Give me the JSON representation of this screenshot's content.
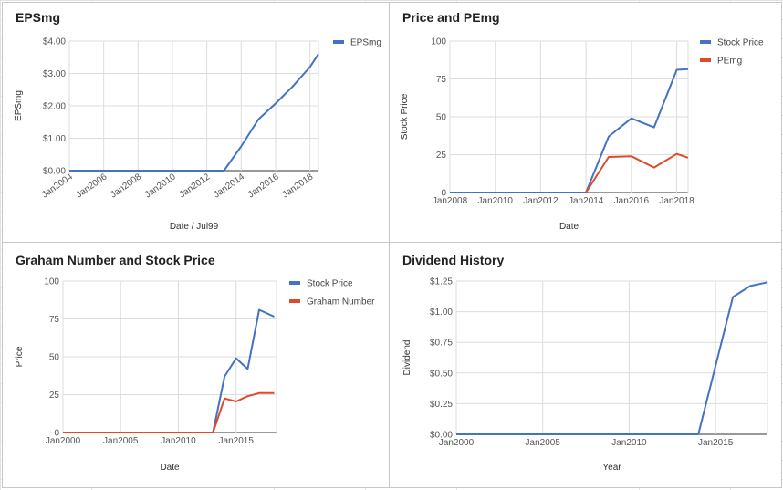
{
  "chart_data": [
    {
      "type": "line",
      "title": "EPSmg",
      "xlabel": "Date / Jul99",
      "ylabel": "EPSmg",
      "x_axis": "date",
      "xlim": [
        2004,
        2018.5
      ],
      "ylim": [
        0,
        4
      ],
      "x_ticks": [
        "Jan2004",
        "Jan2006",
        "Jan2008",
        "Jan2010",
        "Jan2012",
        "Jan2014",
        "Jan2016",
        "Jan2018"
      ],
      "y_ticks": [
        "$0.00",
        "$1.00",
        "$2.00",
        "$3.00",
        "$4.00"
      ],
      "x_tick_rotation": "rotated",
      "grid": true,
      "legend_position": "top-right",
      "colors": [
        "#4472c4"
      ],
      "series": [
        {
          "name": "EPSmg",
          "color": "#4472c4",
          "x": [
            2004,
            2006,
            2008,
            2010,
            2012,
            2013,
            2014,
            2015,
            2016,
            2017,
            2018,
            2018.5
          ],
          "y": [
            0,
            0,
            0,
            0,
            0,
            0,
            0.75,
            1.58,
            2.07,
            2.6,
            3.2,
            3.6
          ]
        }
      ]
    },
    {
      "type": "line",
      "title": "Price and PEmg",
      "xlabel": "Date",
      "ylabel": "Stock Price",
      "x_axis": "date",
      "xlim": [
        2008,
        2018.5
      ],
      "ylim": [
        0,
        100
      ],
      "x_ticks": [
        "Jan2008",
        "Jan2010",
        "Jan2012",
        "Jan2014",
        "Jan2016",
        "Jan2018"
      ],
      "y_ticks": [
        "0",
        "25",
        "50",
        "75",
        "100"
      ],
      "grid": true,
      "legend_position": "top-right",
      "colors": [
        "#4472c4",
        "#dd4b2b"
      ],
      "series": [
        {
          "name": "Stock Price",
          "color": "#4472c4",
          "x": [
            2008,
            2010,
            2012,
            2014,
            2015,
            2016,
            2017,
            2018,
            2018.5
          ],
          "y": [
            0,
            0,
            0,
            0,
            37,
            49,
            43,
            81,
            81.5
          ]
        },
        {
          "name": "PEmg",
          "color": "#dd4b2b",
          "x": [
            2014,
            2015,
            2016,
            2017,
            2018,
            2018.5
          ],
          "y": [
            0,
            23.5,
            24,
            16.5,
            25.5,
            23
          ]
        }
      ]
    },
    {
      "type": "line",
      "title": "Graham Number and Stock Price",
      "xlabel": "Date",
      "ylabel": "Price",
      "x_axis": "date",
      "xlim": [
        2000,
        2018.5
      ],
      "ylim": [
        0,
        100
      ],
      "x_ticks": [
        "Jan2000",
        "Jan2005",
        "Jan2010",
        "Jan2015"
      ],
      "y_ticks": [
        "0",
        "25",
        "50",
        "75",
        "100"
      ],
      "grid": true,
      "legend_position": "top-right",
      "colors": [
        "#4472c4",
        "#dd4b2b"
      ],
      "series": [
        {
          "name": "Stock Price",
          "color": "#4472c4",
          "x": [
            2000,
            2005,
            2010,
            2013,
            2014,
            2015,
            2016,
            2017,
            2018.3
          ],
          "y": [
            0,
            0,
            0,
            0,
            37,
            49,
            42,
            81,
            76.5
          ]
        },
        {
          "name": "Graham Number",
          "color": "#dd4b2b",
          "x": [
            2000,
            2005,
            2010,
            2013,
            2014,
            2015,
            2016,
            2017,
            2018.3
          ],
          "y": [
            0,
            0,
            0,
            0,
            22.5,
            20.5,
            24,
            26,
            26
          ]
        }
      ]
    },
    {
      "type": "line",
      "title": "Dividend History",
      "xlabel": "Year",
      "ylabel": "Dividend",
      "x_axis": "date",
      "xlim": [
        2000,
        2018
      ],
      "ylim": [
        0,
        1.25
      ],
      "x_ticks": [
        "Jan2000",
        "Jan2005",
        "Jan2010",
        "Jan2015"
      ],
      "y_ticks": [
        "$0.00",
        "$0.25",
        "$0.50",
        "$0.75",
        "$1.00",
        "$1.25"
      ],
      "grid": true,
      "colors": [
        "#4472c4"
      ],
      "series": [
        {
          "color": "#4472c4",
          "x": [
            2000,
            2005,
            2010,
            2014,
            2016,
            2017,
            2018
          ],
          "y": [
            0,
            0,
            0,
            0,
            1.12,
            1.21,
            1.24
          ]
        }
      ]
    }
  ]
}
